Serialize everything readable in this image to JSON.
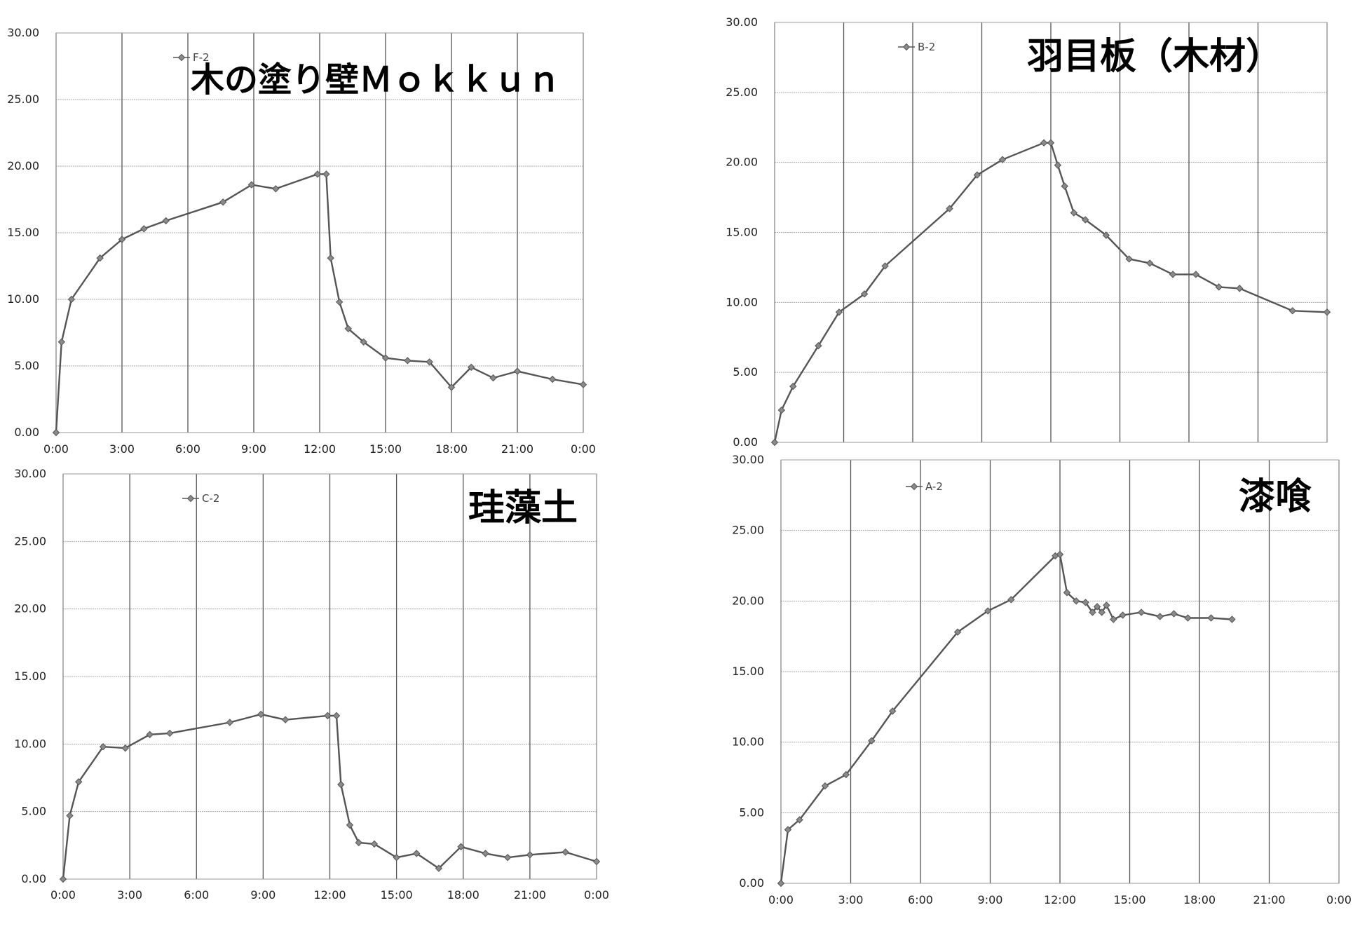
{
  "chart_data": [
    {
      "type": "line",
      "title": "木の塗り壁Ｍｏｋｋｕｎ",
      "legend": "F-2",
      "ylim": [
        0,
        30
      ],
      "yticks": [
        "0.00",
        "5.00",
        "10.00",
        "15.00",
        "20.00",
        "25.00",
        "30.00"
      ],
      "xlim_hours": [
        0,
        24
      ],
      "xticks": [
        "0:00",
        "3:00",
        "6:00",
        "9:00",
        "12:00",
        "15:00",
        "18:00",
        "21:00",
        "0:00"
      ],
      "series": [
        {
          "name": "F-2",
          "x_hours": [
            0,
            0.25,
            0.7,
            2.0,
            3.0,
            4.0,
            5.0,
            7.6,
            8.9,
            10.0,
            11.9,
            12.3,
            12.5,
            12.9,
            13.3,
            14.0,
            15.0,
            16.0,
            17.0,
            18.0,
            18.9,
            19.9,
            21.0,
            22.6,
            24.0
          ],
          "y": [
            0.0,
            6.8,
            10.0,
            13.1,
            14.5,
            15.3,
            15.9,
            17.3,
            18.6,
            18.3,
            19.4,
            19.4,
            13.1,
            9.8,
            7.8,
            6.8,
            5.6,
            5.4,
            5.3,
            3.4,
            4.9,
            4.1,
            4.6,
            4.0,
            3.6
          ]
        }
      ]
    },
    {
      "type": "line",
      "title": "羽目板（木材）",
      "legend": "B-2",
      "ylim": [
        0,
        30
      ],
      "yticks": [
        "0.00",
        "5.00",
        "10.00",
        "15.00",
        "20.00",
        "25.00",
        "30.00"
      ],
      "xlim_hours": [
        0,
        24
      ],
      "xticks": [],
      "series": [
        {
          "name": "B-2",
          "x_hours": [
            0,
            0.3,
            0.8,
            1.9,
            2.8,
            3.9,
            4.8,
            7.6,
            8.8,
            9.9,
            11.7,
            12.0,
            12.3,
            12.6,
            13.0,
            13.5,
            14.4,
            15.4,
            16.3,
            17.3,
            18.3,
            19.3,
            20.2,
            22.5,
            24.0
          ],
          "y": [
            0.0,
            2.3,
            4.0,
            6.9,
            9.3,
            10.6,
            12.6,
            16.7,
            19.1,
            20.2,
            21.4,
            21.4,
            19.8,
            18.3,
            16.4,
            15.9,
            14.8,
            13.1,
            12.8,
            12.0,
            12.0,
            11.1,
            11.0,
            9.4,
            9.3
          ]
        }
      ]
    },
    {
      "type": "line",
      "title": "珪藻土",
      "legend": "C-2",
      "ylim": [
        0,
        30
      ],
      "yticks": [
        "0.00",
        "5.00",
        "10.00",
        "15.00",
        "20.00",
        "25.00",
        "30.00"
      ],
      "xlim_hours": [
        0,
        24
      ],
      "xticks": [
        "0:00",
        "3:00",
        "6:00",
        "9:00",
        "12:00",
        "15:00",
        "18:00",
        "21:00",
        "0:00"
      ],
      "series": [
        {
          "name": "C-2",
          "x_hours": [
            0,
            0.3,
            0.7,
            1.8,
            2.8,
            3.9,
            4.8,
            7.5,
            8.9,
            10.0,
            11.9,
            12.3,
            12.5,
            12.9,
            13.3,
            14.0,
            15.0,
            15.9,
            16.9,
            17.9,
            19.0,
            20.0,
            21.0,
            22.6,
            24.0
          ],
          "y": [
            0.0,
            4.7,
            7.2,
            9.8,
            9.7,
            10.7,
            10.8,
            11.6,
            12.2,
            11.8,
            12.1,
            12.1,
            7.0,
            4.0,
            2.7,
            2.6,
            1.6,
            1.9,
            0.8,
            2.4,
            1.9,
            1.6,
            1.8,
            2.0,
            1.3
          ]
        }
      ]
    },
    {
      "type": "line",
      "title": "漆喰",
      "legend": "A-2",
      "ylim": [
        0,
        30
      ],
      "yticks": [
        "0.00",
        "5.00",
        "10.00",
        "15.00",
        "20.00",
        "25.00",
        "30.00"
      ],
      "xlim_hours": [
        0,
        24
      ],
      "xticks": [
        "0:00",
        "3:00",
        "6:00",
        "9:00",
        "12:00",
        "15:00",
        "18:00",
        "21:00",
        "0:00"
      ],
      "series": [
        {
          "name": "A-2",
          "x_hours": [
            0,
            0.3,
            0.8,
            1.9,
            2.8,
            3.9,
            4.8,
            7.6,
            8.9,
            9.9,
            11.8,
            12.0,
            12.3,
            12.7,
            13.1,
            13.4,
            13.6,
            13.8,
            14.0,
            14.3,
            14.7,
            15.5,
            16.3,
            16.9,
            17.5,
            18.5,
            19.4
          ],
          "y": [
            0.0,
            3.8,
            4.5,
            6.9,
            7.7,
            10.1,
            12.2,
            17.8,
            19.3,
            20.1,
            23.2,
            23.3,
            20.6,
            20.0,
            19.9,
            19.2,
            19.6,
            19.2,
            19.7,
            18.7,
            19.0,
            19.2,
            18.9,
            19.1,
            18.8,
            18.8,
            18.7
          ]
        }
      ]
    }
  ]
}
